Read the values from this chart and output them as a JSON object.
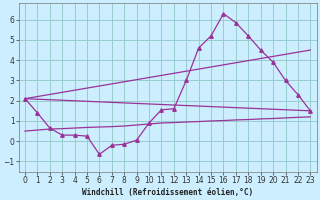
{
  "xlabel": "Windchill (Refroidissement éolien,°C)",
  "background_color": "#cceeff",
  "grid_color": "#99cccc",
  "line_color": "#993399",
  "xlim": [
    -0.5,
    23.5
  ],
  "ylim": [
    -1.5,
    6.8
  ],
  "xticks": [
    0,
    1,
    2,
    3,
    4,
    5,
    6,
    7,
    8,
    9,
    10,
    11,
    12,
    13,
    14,
    15,
    16,
    17,
    18,
    19,
    20,
    21,
    22,
    23
  ],
  "yticks": [
    -1,
    0,
    1,
    2,
    3,
    4,
    5,
    6
  ],
  "series1_x": [
    0,
    1,
    2,
    3,
    4,
    5,
    6,
    7,
    8,
    9,
    10,
    11,
    12,
    13,
    14,
    15,
    16,
    17,
    18,
    19,
    20,
    21,
    22,
    23
  ],
  "series1_y": [
    2.1,
    1.4,
    0.65,
    0.3,
    0.3,
    0.25,
    -0.65,
    -0.2,
    -0.15,
    0.05,
    0.9,
    1.55,
    1.6,
    3.0,
    4.6,
    5.2,
    6.3,
    5.85,
    5.2,
    4.5,
    3.9,
    3.0,
    2.3,
    1.5
  ],
  "series2_x": [
    0,
    23
  ],
  "series2_y": [
    2.1,
    4.5
  ],
  "series3_x": [
    0,
    23
  ],
  "series3_y": [
    2.1,
    1.5
  ],
  "series4_x": [
    0,
    1,
    2,
    3,
    4,
    5,
    6,
    7,
    8,
    9,
    10,
    11,
    12,
    13,
    14,
    15,
    16,
    17,
    18,
    19,
    20,
    21,
    22,
    23
  ],
  "series4_y": [
    0.5,
    0.55,
    0.6,
    0.62,
    0.65,
    0.68,
    0.7,
    0.72,
    0.75,
    0.8,
    0.85,
    0.9,
    0.92,
    0.95,
    0.97,
    1.0,
    1.02,
    1.05,
    1.07,
    1.1,
    1.12,
    1.15,
    1.18,
    1.2
  ]
}
